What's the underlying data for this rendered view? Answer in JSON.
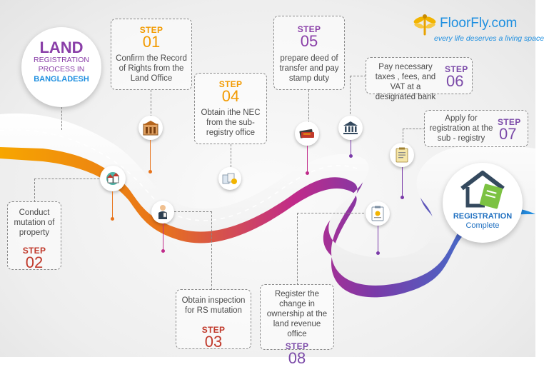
{
  "title": {
    "line1": "LAND",
    "line2": "REGISTRATION",
    "line3": "PROCESS IN",
    "line4": "BANGLADESH"
  },
  "brand": {
    "name": "FloorFly.com",
    "tagline": "every life deserves a living space"
  },
  "steps": [
    {
      "label": "STEP",
      "num": "01",
      "text": "Confirm the Record of Rights from the  Land Office"
    },
    {
      "label": "STEP",
      "num": "02",
      "text": "Conduct mutation of property"
    },
    {
      "label": "STEP",
      "num": "03",
      "text": "Obtain inspection for RS mutation"
    },
    {
      "label": "STEP",
      "num": "04",
      "text": "Obtain ithe NEC from the sub-registry office"
    },
    {
      "label": "STEP",
      "num": "05",
      "text": "prepare deed of transfer and pay stamp duty"
    },
    {
      "label": "STEP",
      "num": "06",
      "text": "Pay necessary taxes , fees, and VAT at a designated bank"
    },
    {
      "label": "STEP",
      "num": "07",
      "text": "Apply for registration at the sub - registry"
    },
    {
      "label": "STEP",
      "num": "08",
      "text": "Register the change in ownership at the land revenue office"
    }
  ],
  "final": {
    "line1": "REGISTRATION",
    "line2": "Complete"
  },
  "icons": [
    "office-building-icon",
    "houses-icon",
    "inspector-icon",
    "documents-icon",
    "deed-icon",
    "bank-icon",
    "application-form-icon",
    "certificate-icon",
    "house-document-icon"
  ]
}
